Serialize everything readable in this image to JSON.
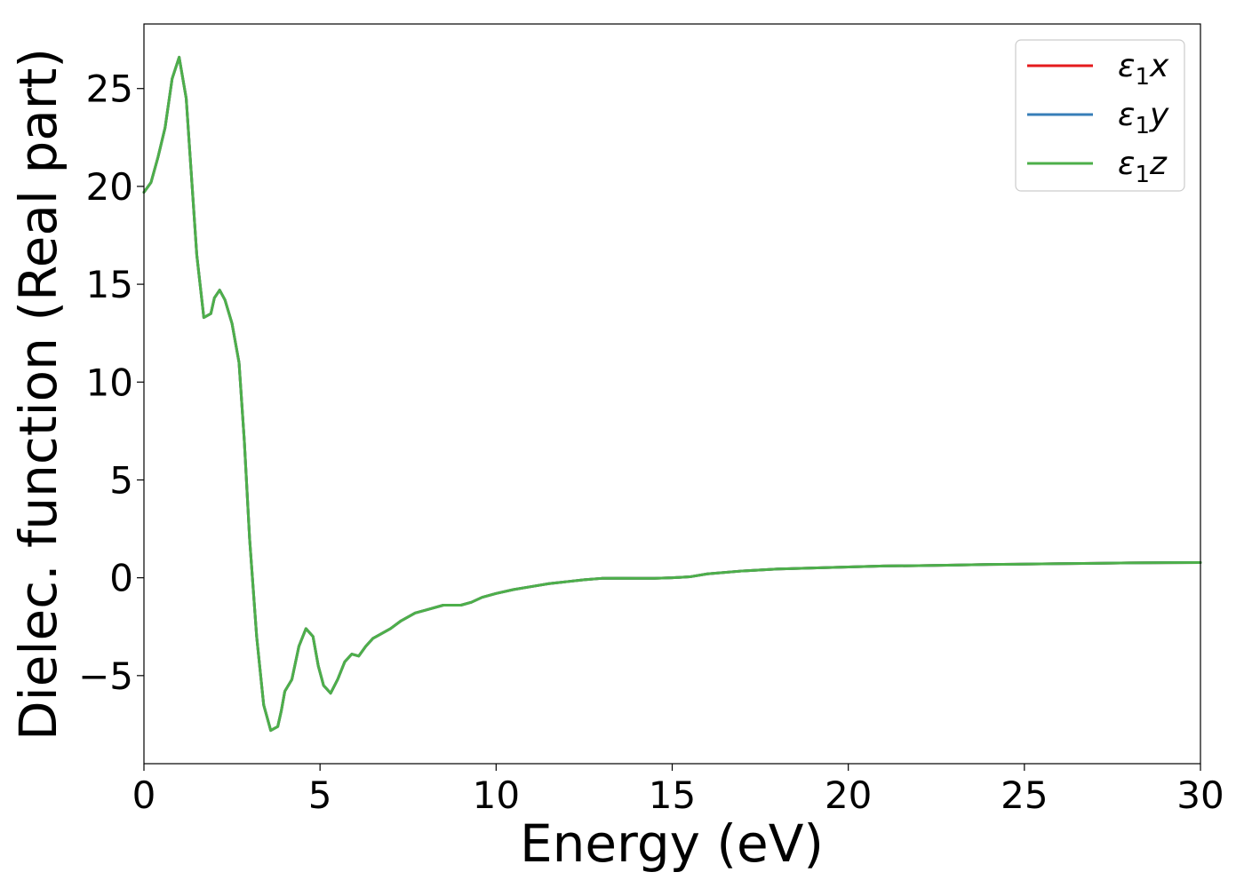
{
  "chart_data": {
    "type": "line",
    "xlabel": "Energy (eV)",
    "ylabel": "Dielec. function (Real part)",
    "xlim": [
      0,
      30
    ],
    "ylim": [
      -9.5,
      28.3
    ],
    "xticks": [
      0,
      5,
      10,
      15,
      20,
      25,
      30
    ],
    "yticks": [
      -5,
      0,
      5,
      10,
      15,
      20,
      25
    ],
    "grid": false,
    "legend_position": "top-right",
    "series": [
      {
        "name": "ε1x",
        "legend_base": "ε",
        "legend_sub": "1",
        "legend_var": "x",
        "color": "#e41a1c",
        "x": [
          0,
          0.2,
          0.4,
          0.6,
          0.8,
          1.0,
          1.2,
          1.35,
          1.5,
          1.7,
          1.9,
          2.0,
          2.15,
          2.3,
          2.5,
          2.7,
          2.85,
          3.0,
          3.2,
          3.4,
          3.6,
          3.8,
          3.9,
          4.0,
          4.2,
          4.4,
          4.6,
          4.8,
          4.95,
          5.1,
          5.3,
          5.5,
          5.7,
          5.9,
          6.1,
          6.3,
          6.5,
          6.7,
          7.0,
          7.3,
          7.7,
          8.0,
          8.5,
          9.0,
          9.3,
          9.6,
          10.0,
          10.5,
          11.0,
          11.5,
          12.0,
          12.5,
          13.0,
          13.5,
          14.0,
          14.5,
          15.0,
          15.5,
          16.0,
          17.0,
          18.0,
          19.0,
          20.0,
          21.0,
          22.0,
          23.0,
          24.0,
          25.0,
          26.0,
          27.0,
          28.0,
          29.0,
          30.0
        ],
        "values": [
          19.7,
          20.2,
          21.5,
          23.0,
          25.5,
          26.6,
          24.5,
          20.5,
          16.5,
          13.3,
          13.5,
          14.3,
          14.7,
          14.2,
          13.0,
          11.0,
          7.0,
          2.0,
          -3.0,
          -6.5,
          -7.8,
          -7.6,
          -6.8,
          -5.8,
          -5.2,
          -3.5,
          -2.6,
          -3.0,
          -4.5,
          -5.5,
          -5.9,
          -5.2,
          -4.3,
          -3.9,
          -4.0,
          -3.5,
          -3.1,
          -2.9,
          -2.6,
          -2.2,
          -1.8,
          -1.65,
          -1.4,
          -1.4,
          -1.25,
          -1.0,
          -0.8,
          -0.6,
          -0.45,
          -0.3,
          -0.2,
          -0.1,
          -0.03,
          -0.02,
          -0.03,
          -0.03,
          0.0,
          0.05,
          0.2,
          0.35,
          0.45,
          0.5,
          0.55,
          0.6,
          0.62,
          0.65,
          0.68,
          0.7,
          0.72,
          0.74,
          0.76,
          0.77,
          0.78
        ]
      },
      {
        "name": "ε1y",
        "legend_base": "ε",
        "legend_sub": "1",
        "legend_var": "y",
        "color": "#377eb8",
        "x": [
          0,
          0.2,
          0.4,
          0.6,
          0.8,
          1.0,
          1.2,
          1.35,
          1.5,
          1.7,
          1.9,
          2.0,
          2.15,
          2.3,
          2.5,
          2.7,
          2.85,
          3.0,
          3.2,
          3.4,
          3.6,
          3.8,
          3.9,
          4.0,
          4.2,
          4.4,
          4.6,
          4.8,
          4.95,
          5.1,
          5.3,
          5.5,
          5.7,
          5.9,
          6.1,
          6.3,
          6.5,
          6.7,
          7.0,
          7.3,
          7.7,
          8.0,
          8.5,
          9.0,
          9.3,
          9.6,
          10.0,
          10.5,
          11.0,
          11.5,
          12.0,
          12.5,
          13.0,
          13.5,
          14.0,
          14.5,
          15.0,
          15.5,
          16.0,
          17.0,
          18.0,
          19.0,
          20.0,
          21.0,
          22.0,
          23.0,
          24.0,
          25.0,
          26.0,
          27.0,
          28.0,
          29.0,
          30.0
        ],
        "values": [
          19.7,
          20.2,
          21.5,
          23.0,
          25.5,
          26.6,
          24.5,
          20.5,
          16.5,
          13.3,
          13.5,
          14.3,
          14.7,
          14.2,
          13.0,
          11.0,
          7.0,
          2.0,
          -3.0,
          -6.5,
          -7.8,
          -7.6,
          -6.8,
          -5.8,
          -5.2,
          -3.5,
          -2.6,
          -3.0,
          -4.5,
          -5.5,
          -5.9,
          -5.2,
          -4.3,
          -3.9,
          -4.0,
          -3.5,
          -3.1,
          -2.9,
          -2.6,
          -2.2,
          -1.8,
          -1.65,
          -1.4,
          -1.4,
          -1.25,
          -1.0,
          -0.8,
          -0.6,
          -0.45,
          -0.3,
          -0.2,
          -0.1,
          -0.03,
          -0.02,
          -0.03,
          -0.03,
          0.0,
          0.05,
          0.2,
          0.35,
          0.45,
          0.5,
          0.55,
          0.6,
          0.62,
          0.65,
          0.68,
          0.7,
          0.72,
          0.74,
          0.76,
          0.77,
          0.78
        ]
      },
      {
        "name": "ε1z",
        "legend_base": "ε",
        "legend_sub": "1",
        "legend_var": "z",
        "color": "#4daf4a",
        "x": [
          0,
          0.2,
          0.4,
          0.6,
          0.8,
          1.0,
          1.2,
          1.35,
          1.5,
          1.7,
          1.9,
          2.0,
          2.15,
          2.3,
          2.5,
          2.7,
          2.85,
          3.0,
          3.2,
          3.4,
          3.6,
          3.8,
          3.9,
          4.0,
          4.2,
          4.4,
          4.6,
          4.8,
          4.95,
          5.1,
          5.3,
          5.5,
          5.7,
          5.9,
          6.1,
          6.3,
          6.5,
          6.7,
          7.0,
          7.3,
          7.7,
          8.0,
          8.5,
          9.0,
          9.3,
          9.6,
          10.0,
          10.5,
          11.0,
          11.5,
          12.0,
          12.5,
          13.0,
          13.5,
          14.0,
          14.5,
          15.0,
          15.5,
          16.0,
          17.0,
          18.0,
          19.0,
          20.0,
          21.0,
          22.0,
          23.0,
          24.0,
          25.0,
          26.0,
          27.0,
          28.0,
          29.0,
          30.0
        ],
        "values": [
          19.7,
          20.2,
          21.5,
          23.0,
          25.5,
          26.6,
          24.5,
          20.5,
          16.5,
          13.3,
          13.5,
          14.3,
          14.7,
          14.2,
          13.0,
          11.0,
          7.0,
          2.0,
          -3.0,
          -6.5,
          -7.8,
          -7.6,
          -6.8,
          -5.8,
          -5.2,
          -3.5,
          -2.6,
          -3.0,
          -4.5,
          -5.5,
          -5.9,
          -5.2,
          -4.3,
          -3.9,
          -4.0,
          -3.5,
          -3.1,
          -2.9,
          -2.6,
          -2.2,
          -1.8,
          -1.65,
          -1.4,
          -1.4,
          -1.25,
          -1.0,
          -0.8,
          -0.6,
          -0.45,
          -0.3,
          -0.2,
          -0.1,
          -0.03,
          -0.02,
          -0.03,
          -0.03,
          0.0,
          0.05,
          0.2,
          0.35,
          0.45,
          0.5,
          0.55,
          0.6,
          0.62,
          0.65,
          0.68,
          0.7,
          0.72,
          0.74,
          0.76,
          0.77,
          0.78
        ]
      }
    ]
  }
}
